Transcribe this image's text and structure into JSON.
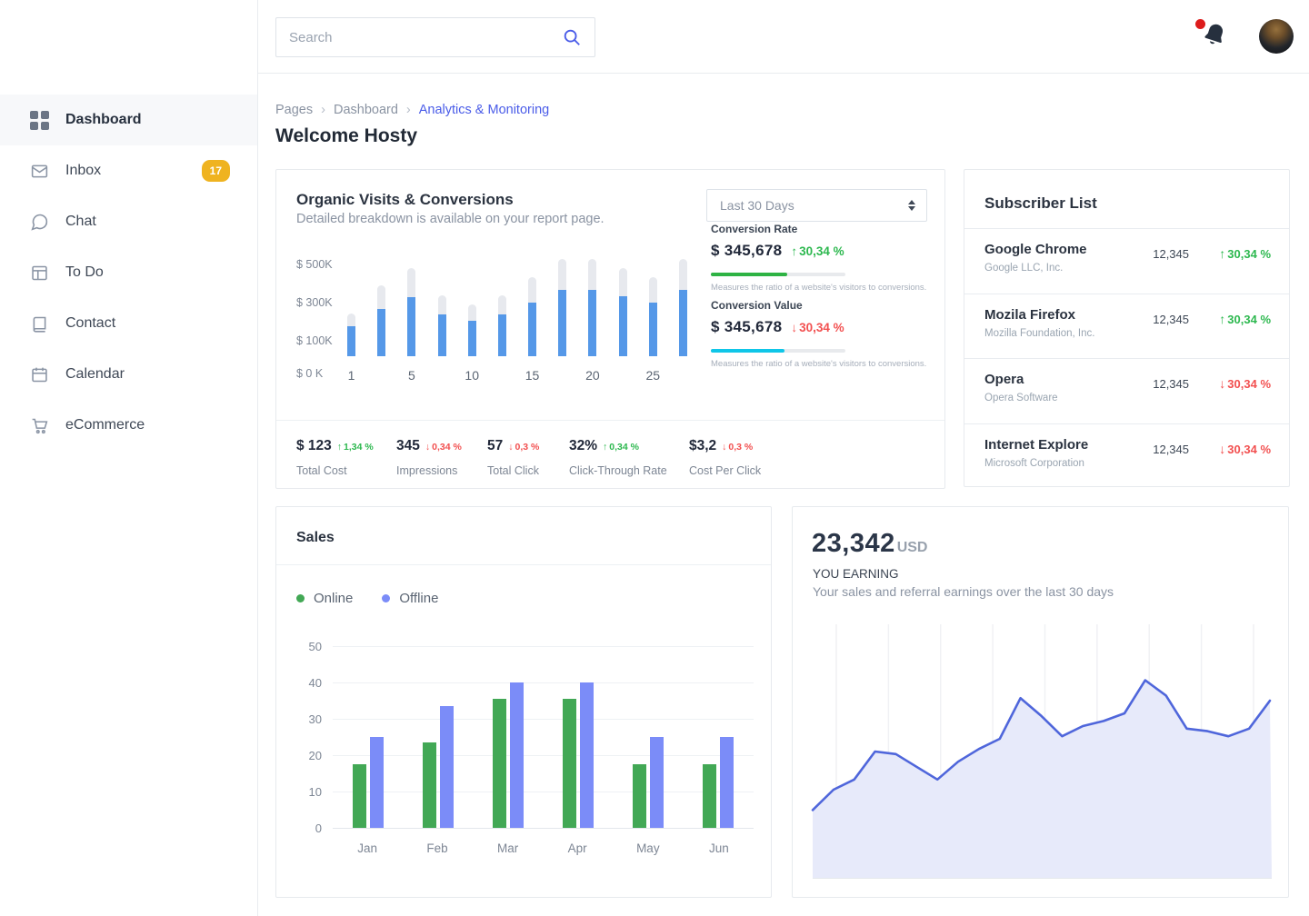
{
  "topbar": {
    "search_placeholder": "Search"
  },
  "sidebar": {
    "items": [
      {
        "label": "Dashboard",
        "icon": "grid-icon",
        "active": true
      },
      {
        "label": "Inbox",
        "icon": "mail-icon",
        "badge": "17"
      },
      {
        "label": "Chat",
        "icon": "chat-icon"
      },
      {
        "label": "To Do",
        "icon": "todo-icon"
      },
      {
        "label": "Contact",
        "icon": "contact-icon"
      },
      {
        "label": "Calendar",
        "icon": "calendar-icon"
      },
      {
        "label": "eCommerce",
        "icon": "cart-icon"
      }
    ]
  },
  "breadcrumb": {
    "items": [
      "Pages",
      "Dashboard",
      "Analytics & Monitoring"
    ]
  },
  "page": {
    "title": "Welcome Hosty"
  },
  "organic": {
    "title": "Organic Visits & Conversions",
    "subtitle": "Detailed breakdown is available on your report page.",
    "range_selector": "Last 30 Days",
    "conversion_rate": {
      "label": "Conversion Rate",
      "value": "$ 345,678",
      "delta": "30,34 %",
      "direction": "up",
      "bar_color": "#2eb344",
      "bar_fill_pct": 57,
      "caption": "Measures the ratio of a website's visitors to conversions."
    },
    "conversion_value": {
      "label": "Conversion Value",
      "value": "$ 345,678",
      "delta": "30,34 %",
      "direction": "down",
      "bar_color": "#0fc6e8",
      "bar_fill_pct": 55,
      "caption": "Measures the ratio of a website's visitors to conversions."
    },
    "stats": [
      {
        "value": "$ 123",
        "delta": "1,34 %",
        "direction": "up",
        "label": "Total Cost"
      },
      {
        "value": "345",
        "delta": "0,34 %",
        "direction": "down",
        "label": "Impressions"
      },
      {
        "value": "57",
        "delta": "0,3 %",
        "direction": "down",
        "label": "Total Click"
      },
      {
        "value": "32%",
        "delta": "0,34 %",
        "direction": "up",
        "label": "Click-Through Rate"
      },
      {
        "value": "$3,2",
        "delta": "0,3 %",
        "direction": "down",
        "label": "Cost Per Click"
      }
    ]
  },
  "subscribers": {
    "title": "Subscriber List",
    "rows": [
      {
        "name": "Google Chrome",
        "company": "Google LLC, Inc.",
        "count": "12,345",
        "delta": "30,34 %",
        "direction": "up"
      },
      {
        "name": "Mozila Firefox",
        "company": "Mozilla Foundation, Inc.",
        "count": "12,345",
        "delta": "30,34 %",
        "direction": "up"
      },
      {
        "name": "Opera",
        "company": "Opera Software",
        "count": "12,345",
        "delta": "30,34 %",
        "direction": "down"
      },
      {
        "name": "Internet Explore",
        "company": "Microsoft Corporation",
        "count": "12,345",
        "delta": "30,34 %",
        "direction": "down"
      }
    ]
  },
  "sales": {
    "title": "Sales",
    "legend": [
      {
        "label": "Online",
        "color": "#42a855"
      },
      {
        "label": "Offline",
        "color": "#7b8cf8"
      }
    ]
  },
  "earning": {
    "amount": "23,342",
    "currency": "USD",
    "label": "YOU EARNING",
    "description": "Your sales and referral earnings over the last 30 days"
  },
  "chart_data": [
    {
      "name": "organic_visits_conversions",
      "type": "bar",
      "title": "Organic Visits & Conversions",
      "x_days": [
        1,
        3,
        5,
        7,
        9,
        11,
        13,
        15,
        17,
        19,
        21,
        23
      ],
      "x_tick_labels": [
        "1",
        "",
        "5",
        "",
        "10",
        "",
        "15",
        "",
        "20",
        "",
        "25",
        ""
      ],
      "y_axis_labels": [
        "$ 500K",
        "$ 300K",
        "$ 100K"
      ],
      "y_zero_label": "$ 0 K",
      "ylim_k": [
        0,
        500
      ],
      "series": [
        {
          "name": "visits",
          "color": "#e7e9ee",
          "values_k": [
            225,
            370,
            460,
            320,
            270,
            320,
            415,
            510,
            510,
            460,
            415,
            510
          ]
        },
        {
          "name": "conversions",
          "color": "#5598e8",
          "values_k": [
            155,
            250,
            310,
            220,
            185,
            220,
            280,
            350,
            350,
            315,
            280,
            350
          ]
        }
      ]
    },
    {
      "name": "sales_by_month",
      "type": "bar",
      "title": "Sales",
      "categories": [
        "Jan",
        "Feb",
        "Mar",
        "Apr",
        "May",
        "Jun"
      ],
      "y_ticks": [
        50,
        40,
        30,
        20,
        10,
        0
      ],
      "ylim": [
        0,
        50
      ],
      "series": [
        {
          "name": "Online",
          "color": "#42a855",
          "values": [
            17.5,
            23.5,
            35.5,
            35.5,
            17.5,
            17.5
          ]
        },
        {
          "name": "Offline",
          "color": "#7b8cf8",
          "values": [
            25,
            33.5,
            40,
            40,
            25,
            25
          ]
        }
      ]
    },
    {
      "name": "earning_trend",
      "type": "area",
      "title": "YOU EARNING",
      "line_color": "#4f66db",
      "fill_color": "#e7eafa",
      "gridlines_vertical": 9,
      "values_pct": [
        27,
        35,
        39,
        50,
        49,
        44,
        39,
        46,
        51,
        55,
        71,
        64,
        56,
        60,
        62,
        65,
        78,
        72,
        59,
        58,
        56,
        59,
        70
      ]
    }
  ]
}
